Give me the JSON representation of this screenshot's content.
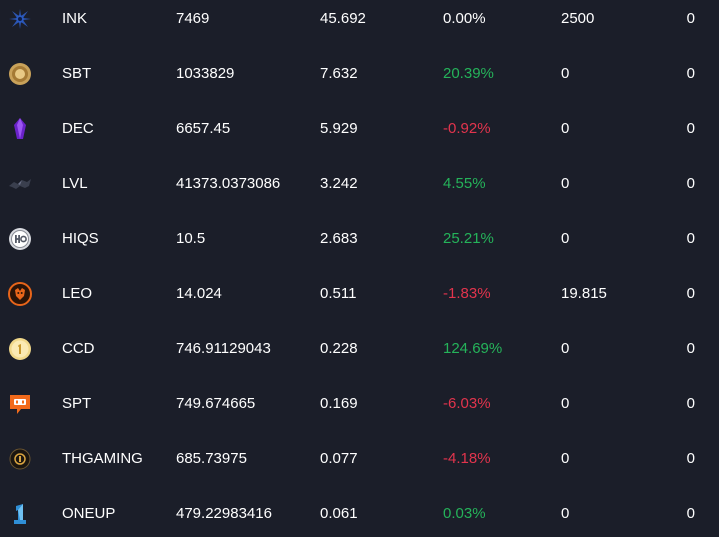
{
  "rows": [
    {
      "icon": "ink-token-icon",
      "symbol": "INK",
      "balance": "7469",
      "price": "45.692",
      "change": "0.00%",
      "trend": "neu",
      "vol": "2500",
      "last": "0"
    },
    {
      "icon": "sbt-token-icon",
      "symbol": "SBT",
      "balance": "1033829",
      "price": "7.632",
      "change": "20.39%",
      "trend": "pos",
      "vol": "0",
      "last": "0"
    },
    {
      "icon": "dec-token-icon",
      "symbol": "DEC",
      "balance": "6657.45",
      "price": "5.929",
      "change": "-0.92%",
      "trend": "neg",
      "vol": "0",
      "last": "0"
    },
    {
      "icon": "lvl-token-icon",
      "symbol": "LVL",
      "balance": "41373.0373086",
      "price": "3.242",
      "change": "4.55%",
      "trend": "pos",
      "vol": "0",
      "last": "0"
    },
    {
      "icon": "hiqs-token-icon",
      "symbol": "HIQS",
      "balance": "10.5",
      "price": "2.683",
      "change": "25.21%",
      "trend": "pos",
      "vol": "0",
      "last": "0"
    },
    {
      "icon": "leo-token-icon",
      "symbol": "LEO",
      "balance": "14.024",
      "price": "0.511",
      "change": "-1.83%",
      "trend": "neg",
      "vol": "19.815",
      "last": "0"
    },
    {
      "icon": "ccd-token-icon",
      "symbol": "CCD",
      "balance": "746.91129043",
      "price": "0.228",
      "change": "124.69%",
      "trend": "pos",
      "vol": "0",
      "last": "0"
    },
    {
      "icon": "spt-token-icon",
      "symbol": "SPT",
      "balance": "749.674665",
      "price": "0.169",
      "change": "-6.03%",
      "trend": "neg",
      "vol": "0",
      "last": "0"
    },
    {
      "icon": "thgaming-token-icon",
      "symbol": "THGAMING",
      "balance": "685.73975",
      "price": "0.077",
      "change": "-4.18%",
      "trend": "neg",
      "vol": "0",
      "last": "0"
    },
    {
      "icon": "oneup-token-icon",
      "symbol": "ONEUP",
      "balance": "479.22983416",
      "price": "0.061",
      "change": "0.03%",
      "trend": "pos",
      "vol": "0",
      "last": "0"
    }
  ],
  "colors": {
    "background": "#1b1e29",
    "positive": "#25b35a",
    "negative": "#e2344d",
    "text": "#ffffff"
  }
}
